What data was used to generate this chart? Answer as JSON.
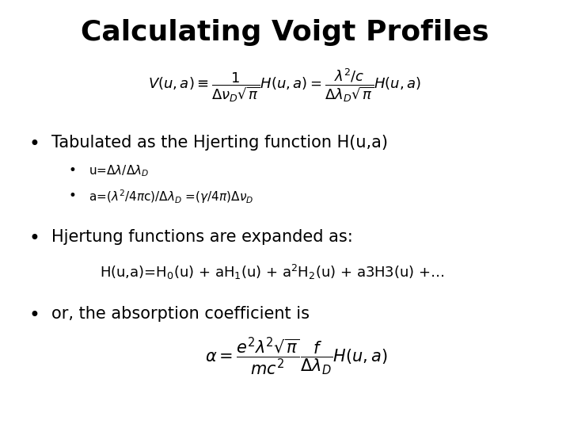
{
  "title": "Calculating Voigt Profiles",
  "background_color": "#ffffff",
  "title_fontsize": 26,
  "title_font": "Comic Sans MS",
  "body_fontsize": 15,
  "body_font": "Comic Sans MS",
  "sub_fontsize": 11,
  "math_fontsize": 13,
  "eq1": "$V(u,a) \\equiv \\dfrac{1}{\\Delta\\nu_D\\sqrt{\\pi}}H(u,a) = \\dfrac{\\lambda^2/c}{\\Delta\\lambda_D\\sqrt{\\pi}}H(u,a)$",
  "bullet1": "Tabulated as the Hjerting function H(u,a)",
  "sub1a": "u=$\\Delta\\lambda$/$\\Delta\\lambda_D$",
  "sub1b": "a=($\\lambda^2$/4$\\pi$c)/$\\Delta\\lambda_D$ =($\\gamma$/4$\\pi$)$\\Delta\\nu_D$",
  "bullet2": "Hjertung functions are expanded as:",
  "eq2": "H(u,a)=H$_0$(u) + aH$_1$(u) + a$^2$H$_2$(u) + a3H3(u) +…",
  "bullet3": "or, the absorption coefficient is",
  "eq3": "$\\alpha = \\dfrac{e^2\\lambda^2\\sqrt{\\pi}}{mc^2}\\dfrac{f}{\\Delta\\lambda_D}H(u,a)$",
  "figsize": [
    7.2,
    5.4
  ],
  "dpi": 100
}
